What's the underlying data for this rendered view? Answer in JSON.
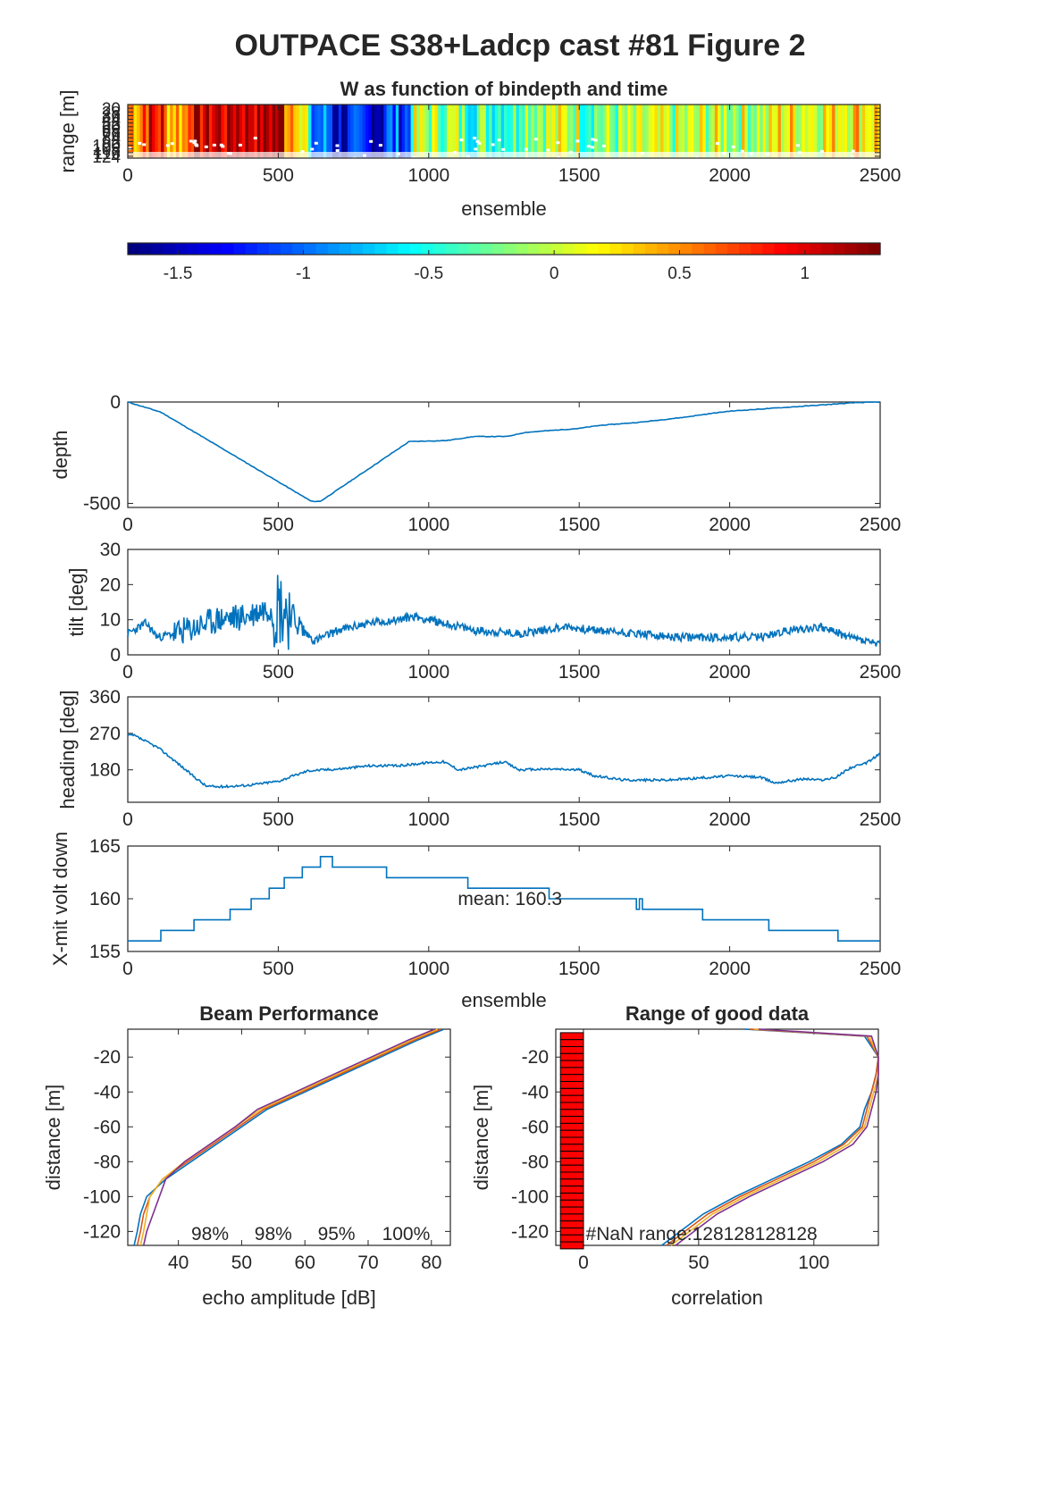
{
  "figure": {
    "title": "OUTPACE S38+Ladcp cast #81 Figure 2"
  },
  "colors": {
    "line": "#0072bd",
    "axis": "#262626",
    "bar": "#ff0000",
    "beam_lines": [
      "#0072bd",
      "#d95319",
      "#edb120",
      "#7e2f8e"
    ]
  },
  "chart_data": [
    {
      "id": "w_image",
      "type": "heatmap",
      "title": "W as function of bindepth and time",
      "xlabel": "ensemble",
      "ylabel": "range [m]",
      "xlim": [
        0,
        2500
      ],
      "ylim": [
        12,
        128
      ],
      "xticks": [
        0,
        500,
        1000,
        1500,
        2000,
        2500
      ],
      "yticks": [
        20,
        28,
        36,
        44,
        52,
        60,
        68,
        76,
        84,
        92,
        100,
        108,
        116,
        124
      ],
      "ytick_labels": [
        "20",
        "28",
        "36",
        "44",
        "52",
        "60",
        "68",
        "76",
        "84",
        "92",
        "100",
        "108",
        "116",
        "124"
      ],
      "clim": [
        -1.7,
        1.3
      ],
      "colorbar_ticks": [
        -1.5,
        -1,
        -0.5,
        0,
        0.5,
        1
      ],
      "segments": [
        {
          "x": [
            0,
            50
          ],
          "w": 0.6
        },
        {
          "x": [
            50,
            120
          ],
          "w": 0.9
        },
        {
          "x": [
            120,
            200
          ],
          "w": 0.5
        },
        {
          "x": [
            200,
            330
          ],
          "w": 1.1
        },
        {
          "x": [
            330,
            520
          ],
          "w": 1.2
        },
        {
          "x": [
            520,
            570
          ],
          "w": 0.7
        },
        {
          "x": [
            570,
            600
          ],
          "w": 0.1
        },
        {
          "x": [
            600,
            680
          ],
          "w": -1.0
        },
        {
          "x": [
            680,
            850
          ],
          "w": -1.4
        },
        {
          "x": [
            850,
            940
          ],
          "w": -1.1
        },
        {
          "x": [
            940,
            1100
          ],
          "w": -0.1
        },
        {
          "x": [
            1100,
            1300
          ],
          "w": -0.3
        },
        {
          "x": [
            1300,
            1500
          ],
          "w": 0.0
        },
        {
          "x": [
            1500,
            1700
          ],
          "w": -0.2
        },
        {
          "x": [
            1700,
            1900
          ],
          "w": -0.1
        },
        {
          "x": [
            1900,
            2150
          ],
          "w": 0.0
        },
        {
          "x": [
            2150,
            2350
          ],
          "w": 0.2
        },
        {
          "x": [
            2350,
            2500
          ],
          "w": 0.3
        }
      ]
    },
    {
      "id": "depth",
      "type": "line",
      "ylabel": "depth",
      "xlim": [
        0,
        2500
      ],
      "ylim": [
        -520,
        0
      ],
      "xticks": [
        0,
        500,
        1000,
        1500,
        2000,
        2500
      ],
      "yticks": [
        -500,
        0
      ],
      "series": [
        {
          "x": [
            0,
            110,
            610,
            640,
            935,
            1060,
            1150,
            1260,
            1320,
            1500,
            1570,
            1700,
            1850,
            1920,
            2000,
            2200,
            2300,
            2420,
            2500
          ],
          "y": [
            0,
            -50,
            -490,
            -490,
            -195,
            -190,
            -170,
            -170,
            -150,
            -130,
            -115,
            -100,
            -75,
            -60,
            -45,
            -25,
            -15,
            -3,
            0
          ]
        }
      ]
    },
    {
      "id": "tilt",
      "type": "line",
      "ylabel": "tilt [deg]",
      "xlim": [
        0,
        2500
      ],
      "ylim": [
        0,
        30
      ],
      "xticks": [
        0,
        500,
        1000,
        1500,
        2000,
        2500
      ],
      "yticks": [
        0,
        10,
        20,
        30
      ],
      "series": [
        {
          "x": [
            0,
            60,
            100,
            200,
            300,
            400,
            450,
            500,
            540,
            580,
            620,
            700,
            800,
            900,
            950,
            1050,
            1150,
            1300,
            1450,
            1550,
            1700,
            1800,
            1950,
            2100,
            2200,
            2300,
            2400,
            2500
          ],
          "y": [
            6,
            9,
            5,
            7,
            10,
            11,
            13,
            14,
            12,
            7,
            4,
            7,
            9,
            10,
            11,
            9,
            7,
            6,
            8,
            7,
            6,
            5,
            5,
            5,
            7,
            8,
            5,
            3
          ]
        }
      ]
    },
    {
      "id": "heading",
      "type": "line",
      "ylabel": "heading [deg]",
      "xlim": [
        0,
        2500
      ],
      "ylim": [
        100,
        360
      ],
      "xticks": [
        0,
        500,
        1000,
        1500,
        2000,
        2500
      ],
      "yticks": [
        180,
        270,
        360
      ],
      "series": [
        {
          "x": [
            0,
            20,
            100,
            160,
            200,
            260,
            300,
            400,
            500,
            600,
            700,
            800,
            900,
            1000,
            1050,
            1100,
            1200,
            1250,
            1300,
            1400,
            1500,
            1550,
            1650,
            1800,
            1900,
            2000,
            2100,
            2150,
            2250,
            2300,
            2350,
            2400,
            2450,
            2500
          ],
          "y": [
            265,
            265,
            235,
            200,
            175,
            140,
            138,
            142,
            152,
            178,
            182,
            190,
            190,
            198,
            200,
            180,
            192,
            200,
            180,
            182,
            180,
            165,
            155,
            155,
            160,
            165,
            162,
            148,
            158,
            155,
            160,
            185,
            195,
            220
          ]
        }
      ]
    },
    {
      "id": "xmit",
      "type": "line",
      "ylabel": "X-mit volt down",
      "xlabel": "ensemble",
      "xlim": [
        0,
        2500
      ],
      "ylim": [
        155,
        165
      ],
      "xticks": [
        0,
        500,
        1000,
        1500,
        2000,
        2500
      ],
      "yticks": [
        155,
        160,
        165
      ],
      "annotation": "mean: 160.3",
      "series": [
        {
          "x": [
            0,
            110,
            110,
            220,
            220,
            340,
            340,
            410,
            410,
            470,
            470,
            520,
            520,
            580,
            580,
            640,
            640,
            680,
            680,
            860,
            860,
            1130,
            1130,
            1400,
            1400,
            1690,
            1690,
            1700,
            1700,
            1710,
            1710,
            1910,
            1910,
            2130,
            2130,
            2360,
            2360,
            2500
          ],
          "y": [
            156,
            156,
            157,
            157,
            158,
            158,
            159,
            159,
            160,
            160,
            161,
            161,
            162,
            162,
            163,
            163,
            164,
            164,
            163,
            163,
            162,
            162,
            161,
            161,
            160,
            160,
            159,
            159,
            160,
            160,
            159,
            159,
            158,
            158,
            157,
            157,
            156,
            156
          ]
        }
      ]
    },
    {
      "id": "beam",
      "type": "line",
      "title": "Beam Performance",
      "xlabel": "echo amplitude [dB]",
      "ylabel": "distance [m]",
      "xlim": [
        32,
        83
      ],
      "ylim": [
        -128,
        -4
      ],
      "xticks": [
        40,
        50,
        60,
        70,
        80
      ],
      "yticks": [
        -120,
        -100,
        -80,
        -60,
        -40,
        -20
      ],
      "beam_percentages": [
        "98%",
        "98%",
        "95%",
        "100%"
      ],
      "y": [
        -4,
        -10,
        -20,
        -30,
        -40,
        -50,
        -60,
        -70,
        -80,
        -90,
        -100,
        -110,
        -120,
        -128
      ],
      "series": [
        {
          "values": [
            82,
            78,
            72,
            66,
            60,
            54,
            50,
            46,
            42,
            38,
            35,
            34,
            33.5,
            33
          ]
        },
        {
          "values": [
            81.5,
            77.5,
            71.5,
            65.5,
            59.5,
            53.5,
            49.5,
            45.5,
            41.5,
            37.5,
            35.5,
            34.5,
            34,
            33.5
          ]
        },
        {
          "values": [
            81,
            77,
            71,
            65,
            59,
            53,
            49,
            45,
            41,
            37.5,
            35.5,
            35,
            34.5,
            34
          ]
        },
        {
          "values": [
            80.5,
            76.5,
            70.5,
            64.5,
            58.5,
            52.5,
            49,
            45,
            41,
            38,
            37,
            36,
            35,
            34.5
          ]
        }
      ]
    },
    {
      "id": "range_good",
      "type": "line",
      "title": "Range of good data",
      "xlabel": "correlation",
      "ylabel": "distance [m]",
      "xlim": [
        -12,
        128
      ],
      "ylim": [
        -128,
        -4
      ],
      "xticks": [
        0,
        50,
        100
      ],
      "yticks": [
        -120,
        -100,
        -80,
        -60,
        -40,
        -20
      ],
      "annotation": "#NaN range:128128128128",
      "y": [
        -4,
        -8,
        -20,
        -30,
        -40,
        -50,
        -60,
        -70,
        -80,
        -90,
        -100,
        -110,
        -120,
        -128
      ],
      "series": [
        {
          "values": [
            70,
            122,
            128,
            127,
            125,
            122,
            120,
            112,
            98,
            82,
            66,
            52,
            42,
            34
          ]
        },
        {
          "values": [
            72,
            123,
            128,
            127,
            125,
            123,
            121,
            113,
            100,
            84,
            68,
            54,
            44,
            36
          ]
        },
        {
          "values": [
            74,
            124,
            128,
            128,
            126,
            124,
            122,
            115,
            102,
            86,
            70,
            56,
            46,
            38
          ]
        },
        {
          "values": [
            76,
            125,
            128,
            128,
            127,
            125,
            123,
            117,
            104,
            88,
            72,
            58,
            48,
            40
          ]
        }
      ],
      "bars": {
        "y_top": -6,
        "y_bottom": -128,
        "value": -10
      }
    }
  ]
}
